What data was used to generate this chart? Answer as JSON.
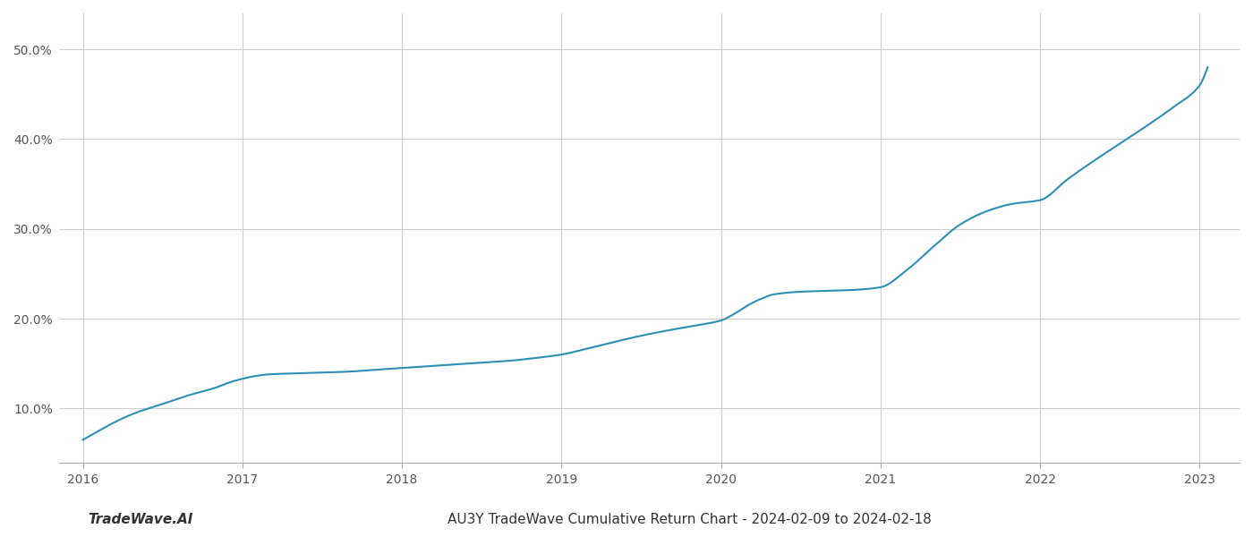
{
  "title": "AU3Y TradeWave Cumulative Return Chart - 2024-02-09 to 2024-02-18",
  "watermark": "TradeWave.AI",
  "line_color": "#2d8fb5",
  "background_color": "#ffffff",
  "grid_color": "#cccccc",
  "x_values": [
    2016.0,
    2016.08,
    2016.17,
    2016.33,
    2016.5,
    2016.67,
    2016.83,
    2016.92,
    2017.0,
    2017.08,
    2017.17,
    2017.33,
    2017.5,
    2017.67,
    2017.83,
    2018.0,
    2018.17,
    2018.33,
    2018.5,
    2018.67,
    2018.83,
    2019.0,
    2019.17,
    2019.33,
    2019.5,
    2019.67,
    2019.83,
    2020.0,
    2020.08,
    2020.17,
    2020.25,
    2020.33,
    2020.5,
    2020.67,
    2020.83,
    2021.0,
    2021.17,
    2021.33,
    2021.5,
    2021.67,
    2021.83,
    2022.0,
    2022.17,
    2022.33,
    2022.5,
    2022.67,
    2022.83,
    2023.0,
    2023.05
  ],
  "y_values": [
    6.5,
    7.3,
    8.2,
    9.5,
    10.5,
    11.5,
    12.3,
    12.9,
    13.3,
    13.6,
    13.8,
    13.9,
    14.0,
    14.1,
    14.3,
    14.5,
    14.7,
    14.9,
    15.1,
    15.3,
    15.6,
    16.0,
    16.7,
    17.4,
    18.1,
    18.7,
    19.2,
    19.8,
    20.5,
    21.5,
    22.2,
    22.7,
    23.0,
    23.1,
    23.2,
    23.5,
    25.5,
    28.0,
    30.5,
    32.0,
    32.8,
    33.2,
    35.5,
    37.5,
    39.5,
    41.5,
    43.5,
    46.0,
    48.0
  ],
  "xlim": [
    2015.85,
    2023.25
  ],
  "ylim": [
    4.0,
    54.0
  ],
  "yticks": [
    10.0,
    20.0,
    30.0,
    40.0,
    50.0
  ],
  "xticks": [
    2016,
    2017,
    2018,
    2019,
    2020,
    2021,
    2022,
    2023
  ],
  "ytick_labels": [
    "10.0%",
    "20.0%",
    "30.0%",
    "40.0%",
    "50.0%"
  ],
  "xtick_labels": [
    "2016",
    "2017",
    "2018",
    "2019",
    "2020",
    "2021",
    "2022",
    "2023"
  ],
  "line_width": 1.5,
  "title_fontsize": 11,
  "tick_fontsize": 10,
  "watermark_fontsize": 11
}
